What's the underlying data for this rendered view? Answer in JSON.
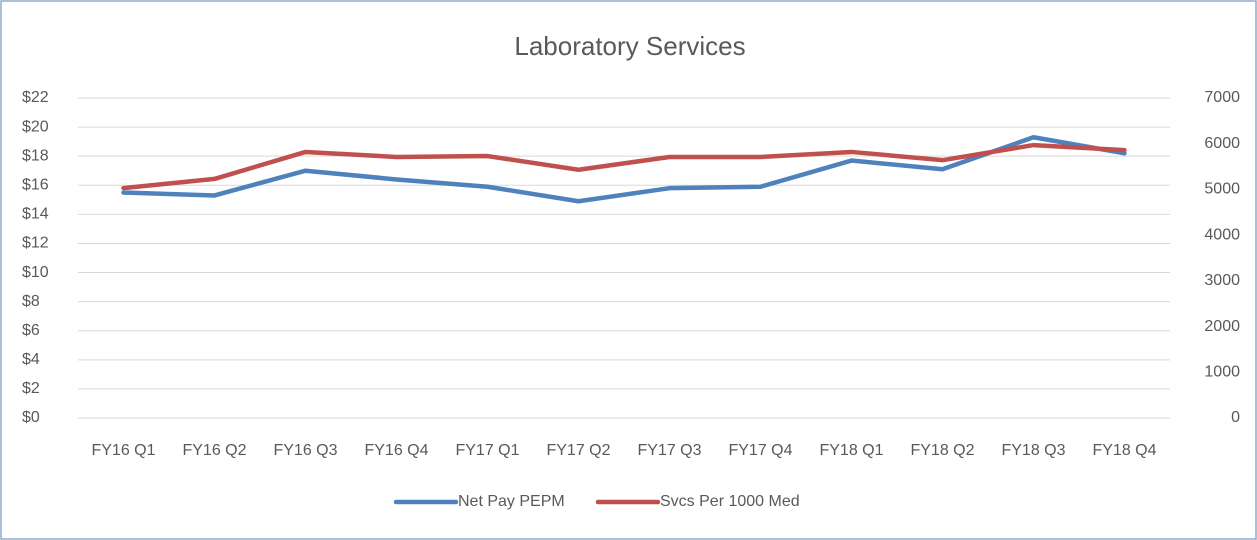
{
  "chart_data": {
    "type": "line",
    "title": "Laboratory Services",
    "categories": [
      "FY16 Q1",
      "FY16 Q2",
      "FY16 Q3",
      "FY16 Q4",
      "FY17 Q1",
      "FY17 Q2",
      "FY17 Q3",
      "FY17 Q4",
      "FY18 Q1",
      "FY18 Q2",
      "FY18 Q3",
      "FY18 Q4"
    ],
    "series": [
      {
        "name": "Net Pay PEPM",
        "color": "#4f81bd",
        "values": [
          15.5,
          15.3,
          17.0,
          16.4,
          15.9,
          14.9,
          15.8,
          15.9,
          17.7,
          17.1,
          19.3,
          18.2
        ]
      },
      {
        "name": "Svcs Per 1000 Med",
        "color": "#c0504d",
        "axis": "y2",
        "values": [
          5030,
          5230,
          5820,
          5710,
          5730,
          5430,
          5710,
          5710,
          5820,
          5640,
          5970,
          5860
        ]
      }
    ],
    "ylim": [
      0,
      22
    ],
    "yticks": [
      {
        "value": 0,
        "label": "$0"
      },
      {
        "value": 2,
        "label": "$2"
      },
      {
        "value": 4,
        "label": "$4"
      },
      {
        "value": 6,
        "label": "$6"
      },
      {
        "value": 8,
        "label": "$8"
      },
      {
        "value": 10,
        "label": "$10"
      },
      {
        "value": 12,
        "label": "$12"
      },
      {
        "value": 14,
        "label": "$14"
      },
      {
        "value": 16,
        "label": "$16"
      },
      {
        "value": 18,
        "label": "$18"
      },
      {
        "value": 20,
        "label": "$20"
      },
      {
        "value": 22,
        "label": "$22"
      }
    ],
    "y2lim": [
      0,
      7000
    ],
    "y2ticks": [
      0,
      1000,
      2000,
      3000,
      4000,
      5000,
      6000,
      7000
    ],
    "grid": true,
    "legend": "bottom"
  }
}
